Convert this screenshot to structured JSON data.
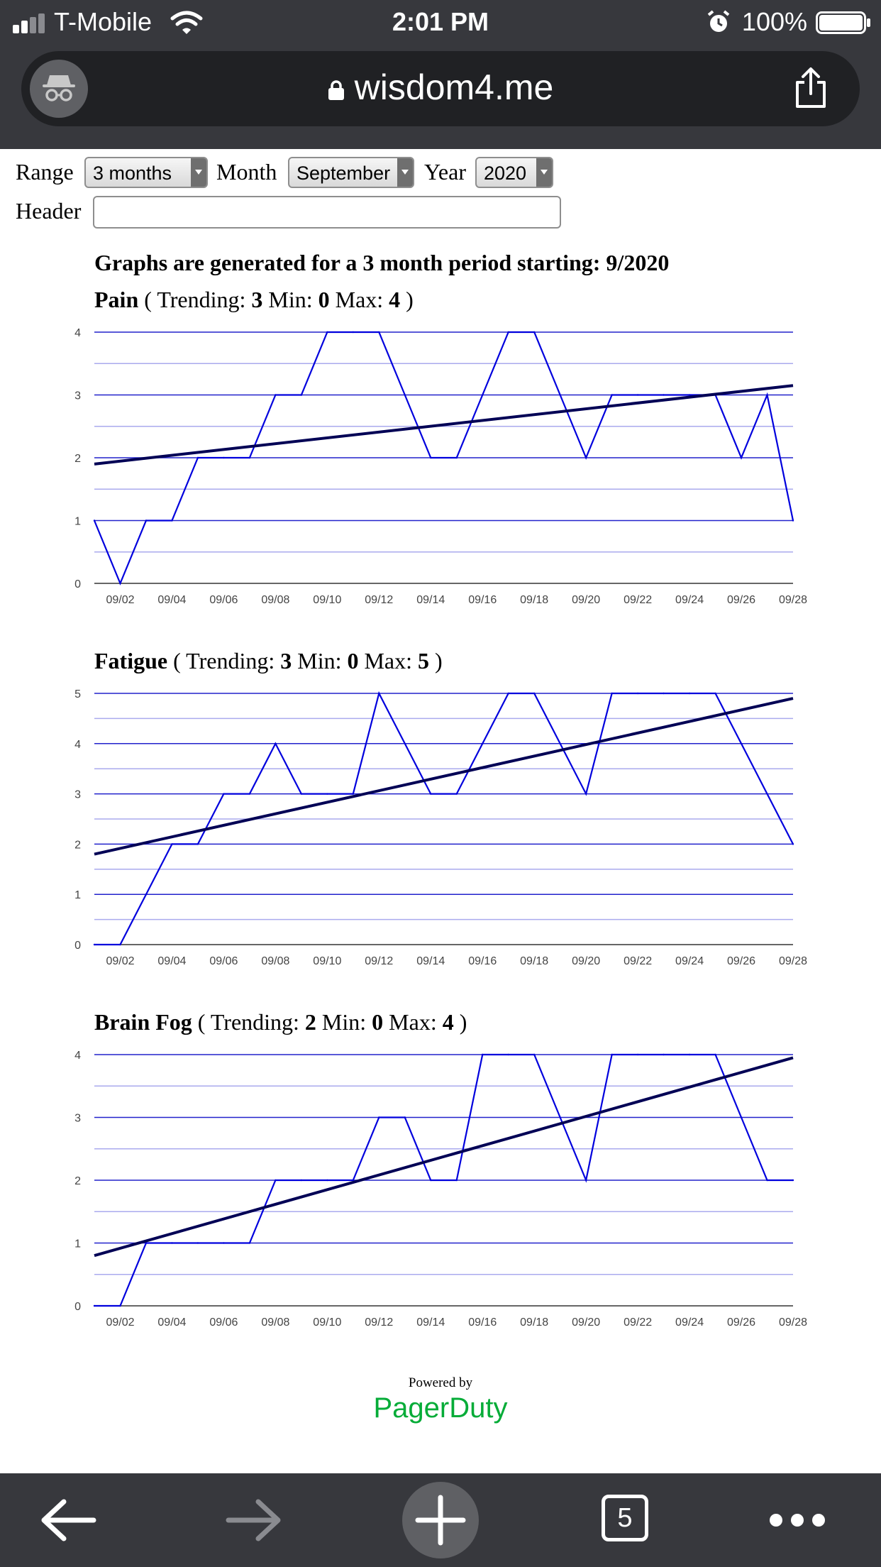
{
  "status_bar": {
    "carrier": "T-Mobile",
    "time": "2:01 PM",
    "battery": "100%"
  },
  "browser": {
    "url": "wisdom4.me",
    "tab_count": "5"
  },
  "controls": {
    "range_label": "Range",
    "range_value": "3 months",
    "month_label": "Month",
    "month_value": "September",
    "year_label": "Year",
    "year_value": "2020",
    "header_label": "Header",
    "header_value": ""
  },
  "period_text": "Graphs are generated for a 3 month period starting: 9/2020",
  "footer": {
    "powered_by": "Powered by",
    "brand": "PagerDuty"
  },
  "colors": {
    "series": "#0000dd",
    "trend": "#000055",
    "grid_major": "#2222cc",
    "grid_minor": "#aaaaee",
    "brand": "#06ac38"
  },
  "chart_data": [
    {
      "type": "line",
      "name": "Pain",
      "trending_label": "Trending:",
      "trending": "3",
      "min_label": "Min:",
      "min": "0",
      "max_label": "Max:",
      "max": "4",
      "x_labels": [
        "09/02",
        "09/04",
        "09/06",
        "09/08",
        "09/10",
        "09/12",
        "09/14",
        "09/16",
        "09/18",
        "09/20",
        "09/22",
        "09/24",
        "09/26",
        "09/28"
      ],
      "y_ticks": [
        0,
        1,
        2,
        3,
        4
      ],
      "ylim": [
        0,
        4
      ],
      "x_range": [
        1,
        28
      ],
      "x": [
        1,
        2,
        3,
        4,
        5,
        6,
        7,
        8,
        9,
        10,
        11,
        12,
        13,
        14,
        15,
        16,
        17,
        18,
        19,
        20,
        21,
        22,
        23,
        24,
        25,
        26,
        27,
        28
      ],
      "values": [
        1,
        0,
        1,
        1,
        2,
        2,
        2,
        3,
        3,
        4,
        4,
        4,
        3,
        2,
        2,
        3,
        4,
        4,
        3,
        2,
        3,
        3,
        3,
        3,
        3,
        2,
        3,
        1
      ],
      "trend": [
        1.9,
        3.15
      ]
    },
    {
      "type": "line",
      "name": "Fatigue",
      "trending_label": "Trending:",
      "trending": "3",
      "min_label": "Min:",
      "min": "0",
      "max_label": "Max:",
      "max": "5",
      "x_labels": [
        "09/02",
        "09/04",
        "09/06",
        "09/08",
        "09/10",
        "09/12",
        "09/14",
        "09/16",
        "09/18",
        "09/20",
        "09/22",
        "09/24",
        "09/26",
        "09/28"
      ],
      "y_ticks": [
        0,
        1,
        2,
        3,
        4,
        5
      ],
      "ylim": [
        0,
        5
      ],
      "x_range": [
        1,
        28
      ],
      "x": [
        1,
        2,
        3,
        4,
        5,
        6,
        7,
        8,
        9,
        10,
        11,
        12,
        13,
        14,
        15,
        16,
        17,
        18,
        19,
        20,
        21,
        22,
        23,
        24,
        25,
        26,
        27,
        28
      ],
      "values": [
        0,
        0,
        1,
        2,
        2,
        3,
        3,
        4,
        3,
        3,
        3,
        5,
        4,
        3,
        3,
        4,
        5,
        5,
        4,
        3,
        5,
        5,
        5,
        5,
        5,
        4,
        3,
        2
      ],
      "trend": [
        1.8,
        4.9
      ]
    },
    {
      "type": "line",
      "name": "Brain Fog",
      "trending_label": "Trending:",
      "trending": "2",
      "min_label": "Min:",
      "min": "0",
      "max_label": "Max:",
      "max": "4",
      "x_labels": [
        "09/02",
        "09/04",
        "09/06",
        "09/08",
        "09/10",
        "09/12",
        "09/14",
        "09/16",
        "09/18",
        "09/20",
        "09/22",
        "09/24",
        "09/26",
        "09/28"
      ],
      "y_ticks": [
        0,
        1,
        2,
        3,
        4
      ],
      "ylim": [
        0,
        4
      ],
      "x_range": [
        1,
        28
      ],
      "x": [
        1,
        2,
        3,
        4,
        5,
        6,
        7,
        8,
        9,
        10,
        11,
        12,
        13,
        14,
        15,
        16,
        17,
        18,
        19,
        20,
        21,
        22,
        23,
        24,
        25,
        26,
        27,
        28
      ],
      "values": [
        0,
        0,
        1,
        1,
        1,
        1,
        1,
        2,
        2,
        2,
        2,
        3,
        3,
        2,
        2,
        4,
        4,
        4,
        3,
        2,
        4,
        4,
        4,
        4,
        4,
        3,
        2,
        2
      ],
      "trend": [
        0.8,
        3.95
      ]
    }
  ]
}
